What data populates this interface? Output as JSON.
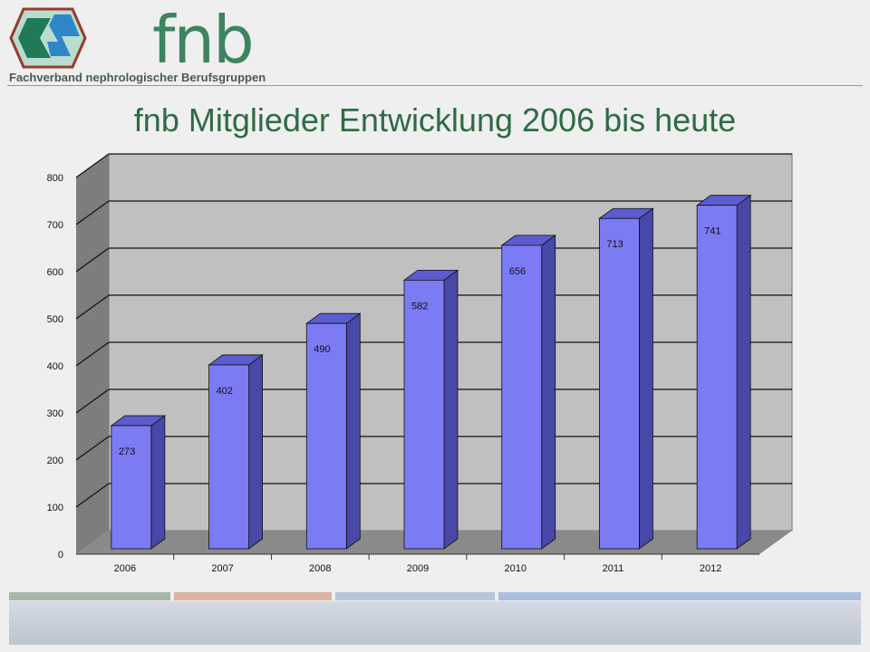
{
  "header": {
    "logo_text": "fnb",
    "org_name": "Fachverband nephrologischer Berufsgruppen"
  },
  "slide_title": "fnb Mitglieder Entwicklung 2006 bis heute",
  "colors": {
    "bar_front": "#7b7bf3",
    "bar_side": "#4848a8",
    "bar_top": "#5c5cd0",
    "wall": "#c0c0c0",
    "floor": "#8a8a8a",
    "title": "#2f6b45"
  },
  "chart_data": {
    "type": "bar",
    "style": "3d-column",
    "categories": [
      "2006",
      "2007",
      "2008",
      "2009",
      "2010",
      "2011",
      "2012"
    ],
    "values": [
      273,
      402,
      490,
      582,
      656,
      713,
      741
    ],
    "y_ticks": [
      "0",
      "100",
      "200",
      "300",
      "400",
      "500",
      "600",
      "700",
      "800"
    ],
    "ylim": [
      0,
      800
    ],
    "grid": true,
    "data_labels": true,
    "legend": "none"
  }
}
